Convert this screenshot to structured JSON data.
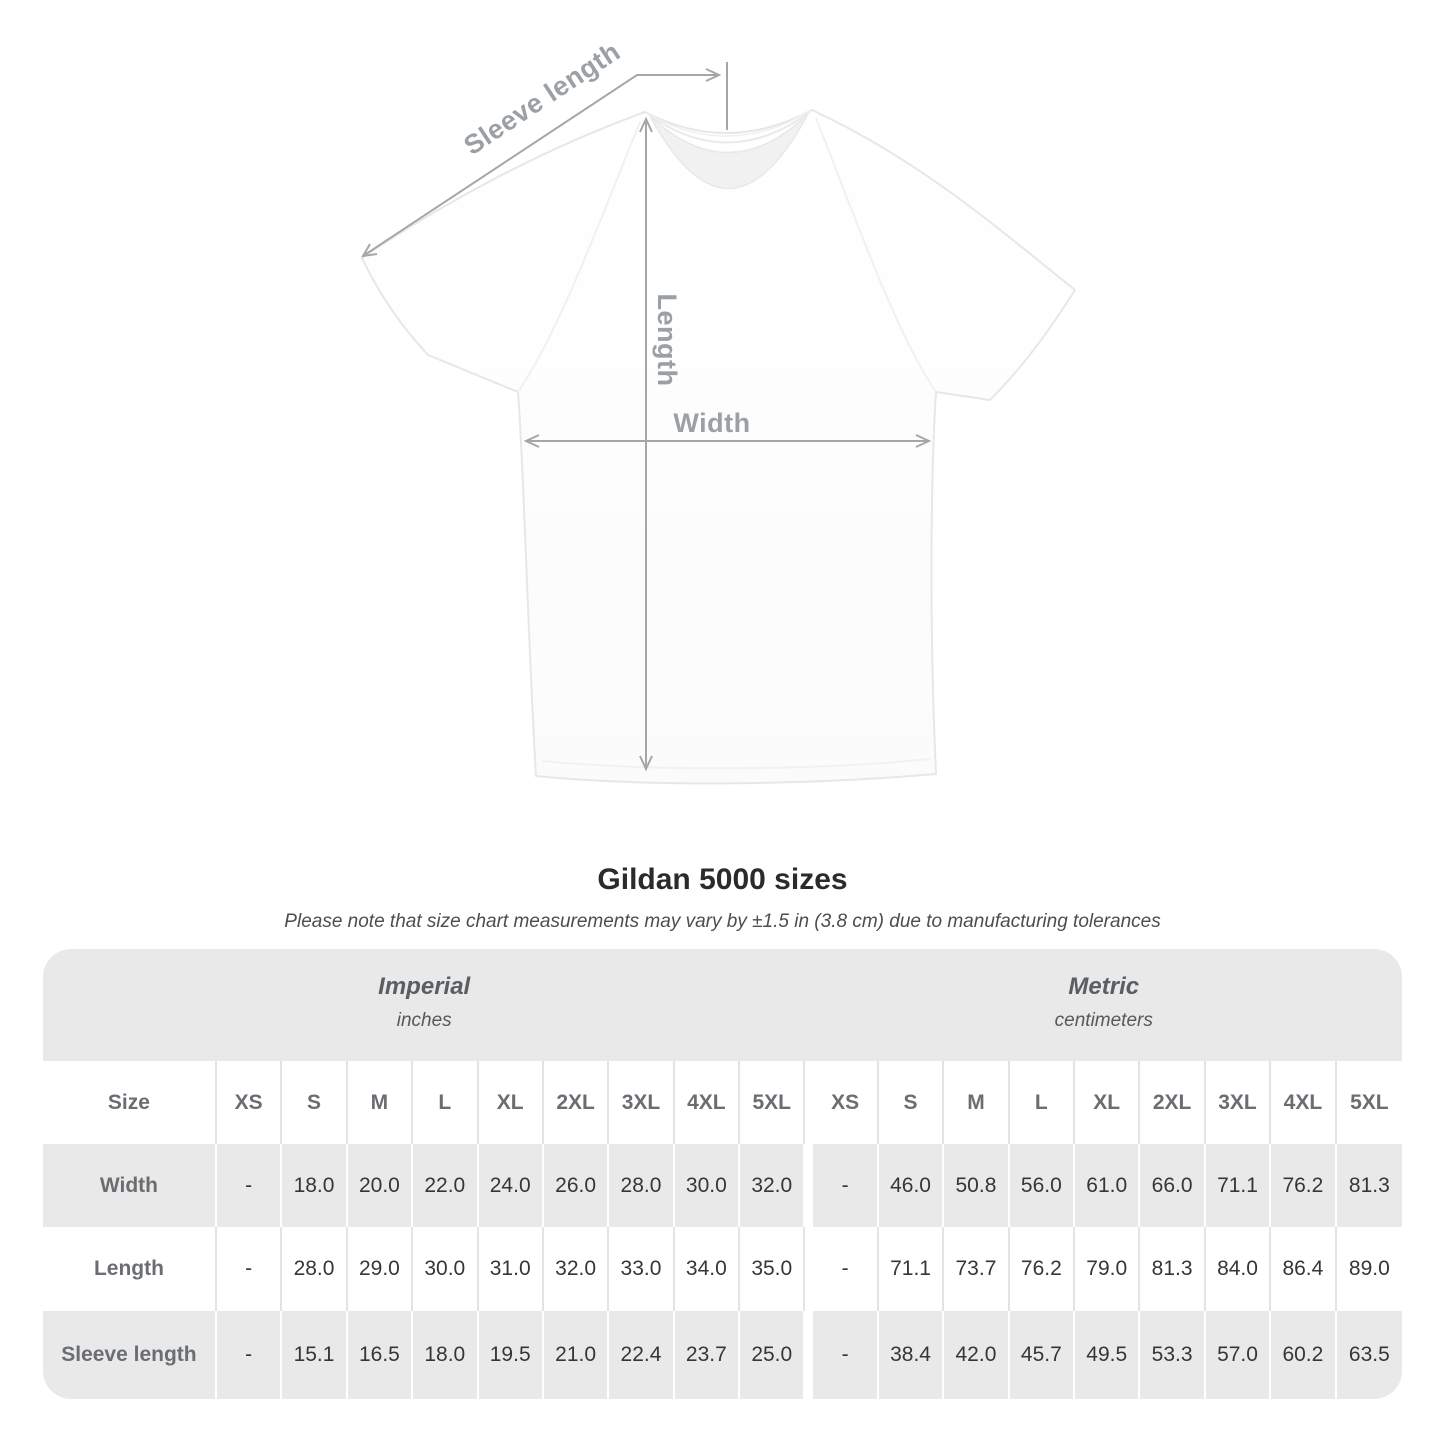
{
  "diagram": {
    "sleeve_label": "Sleeve length",
    "length_label": "Length",
    "width_label": "Width"
  },
  "heading": {
    "title": "Gildan 5000 sizes",
    "subtitle": "Please note that size chart measurements may vary by ±1.5 in (3.8 cm) due to manufacturing tolerances"
  },
  "table": {
    "groups": [
      {
        "label": "Imperial",
        "sublabel": "inches"
      },
      {
        "label": "Metric",
        "sublabel": "centimeters"
      }
    ],
    "size_header": "Size",
    "sizes": [
      "XS",
      "S",
      "M",
      "L",
      "XL",
      "2XL",
      "3XL",
      "4XL",
      "5XL"
    ],
    "rows": [
      {
        "label": "Width",
        "imperial": [
          "-",
          "18.0",
          "20.0",
          "22.0",
          "24.0",
          "26.0",
          "28.0",
          "30.0",
          "32.0"
        ],
        "metric": [
          "-",
          "46.0",
          "50.8",
          "56.0",
          "61.0",
          "66.0",
          "71.1",
          "76.2",
          "81.3"
        ]
      },
      {
        "label": "Length",
        "imperial": [
          "-",
          "28.0",
          "29.0",
          "30.0",
          "31.0",
          "32.0",
          "33.0",
          "34.0",
          "35.0"
        ],
        "metric": [
          "-",
          "71.1",
          "73.7",
          "76.2",
          "79.0",
          "81.3",
          "84.0",
          "86.4",
          "89.0"
        ]
      },
      {
        "label": "Sleeve length",
        "imperial": [
          "-",
          "15.1",
          "16.5",
          "18.0",
          "19.5",
          "21.0",
          "22.4",
          "23.7",
          "25.0"
        ],
        "metric": [
          "-",
          "38.4",
          "42.0",
          "45.7",
          "49.5",
          "53.3",
          "57.0",
          "60.2",
          "63.5"
        ]
      }
    ]
  },
  "colors": {
    "band_gray": "#e9e9e9",
    "white_row_separator": "#e4e4e4",
    "arrow_gray": "#a4a7aa",
    "diagram_label_gray": "#9ba0a4",
    "title_text": "#2b2b2b",
    "subtitle_text": "#4d4d4d",
    "group_header_text": "#595e62",
    "row_label_text": "#6a6e72",
    "value_text": "#363636"
  }
}
